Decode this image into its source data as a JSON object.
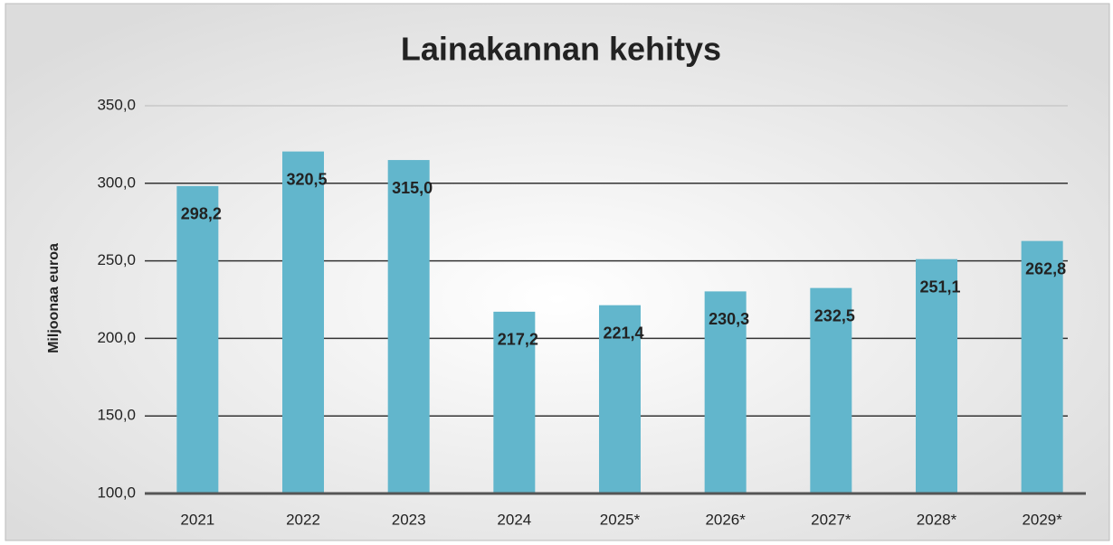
{
  "chart_data": {
    "type": "bar",
    "title": "Lainakannan kehitys",
    "y_label": "Miljoonaa euroa",
    "categories": [
      "2021",
      "2022",
      "2023",
      "2024",
      "2025*",
      "2026*",
      "2027*",
      "2028*",
      "2029*"
    ],
    "values": [
      298.2,
      320.5,
      315.0,
      217.2,
      221.4,
      230.3,
      232.5,
      251.1,
      262.8
    ],
    "value_labels": [
      "298,2",
      "320,5",
      "315,0",
      "217,2",
      "221,4",
      "230,3",
      "232,5",
      "251,1",
      "262,8"
    ],
    "color": "#62b6cc",
    "ylim": [
      100,
      350
    ],
    "yticks": [
      {
        "value": 100,
        "label": "100,0"
      },
      {
        "value": 150,
        "label": "150,0"
      },
      {
        "value": 200,
        "label": "200,0"
      },
      {
        "value": 250,
        "label": "250,0"
      },
      {
        "value": 300,
        "label": "300,0"
      },
      {
        "value": 350,
        "label": "350,0"
      }
    ],
    "grid": true
  }
}
